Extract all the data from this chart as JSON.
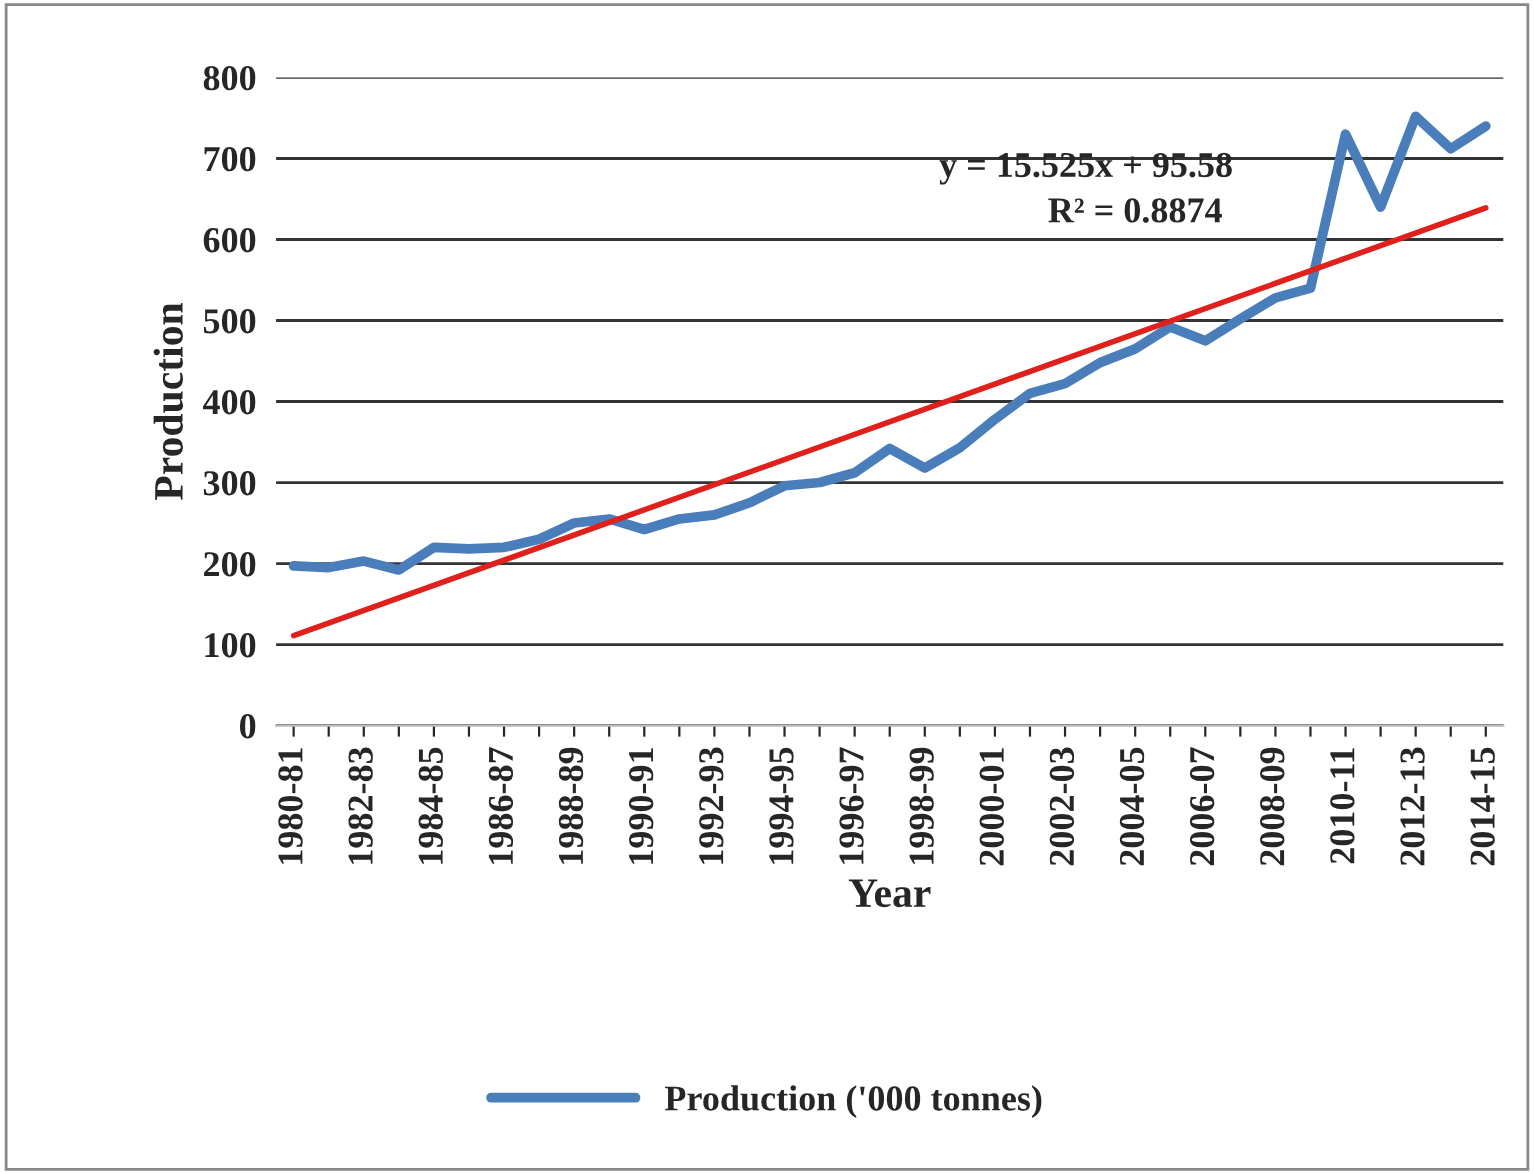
{
  "chart_data": {
    "type": "line",
    "xlabel": "Year",
    "ylabel": "Production",
    "categories": [
      "1980-81",
      null,
      "1982-83",
      null,
      "1984-85",
      null,
      "1986-87",
      null,
      "1988-89",
      null,
      "1990-91",
      null,
      "1992-93",
      null,
      "1994-95",
      null,
      "1996-97",
      null,
      "1998-99",
      null,
      "2000-01",
      null,
      "2002-03",
      null,
      "2004-05",
      null,
      "2006-07",
      null,
      "2008-09",
      null,
      "2010-11",
      null,
      "2012-13",
      null,
      "2014-15"
    ],
    "series": [
      {
        "name": "Production ('000 tonnes)",
        "color": "#4a7ebb",
        "values": [
          197,
          195,
          203,
          192,
          220,
          218,
          220,
          230,
          250,
          255,
          242,
          255,
          260,
          275,
          296,
          300,
          312,
          342,
          318,
          343,
          378,
          410,
          422,
          448,
          465,
          492,
          475,
          502,
          528,
          540,
          730,
          640,
          752,
          712,
          740
        ]
      },
      {
        "type": "line",
        "color": "#e0201b",
        "x": [
          "1980-81",
          "2014-15"
        ],
        "values": [
          111,
          639
        ]
      }
    ],
    "ylim": [
      0,
      800
    ],
    "yticks": [
      0,
      100,
      200,
      300,
      400,
      500,
      600,
      700,
      800
    ],
    "grid": "y",
    "legend": "bottom",
    "annotations": [
      "y = 15.525x + 95.58",
      "R² = 0.8874"
    ]
  }
}
